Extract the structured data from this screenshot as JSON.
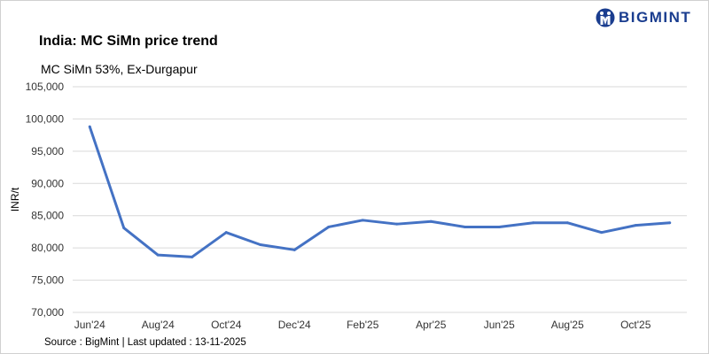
{
  "brand": {
    "name": "BIGMINT",
    "color": "#1a3d8f"
  },
  "source": "Source : BigMint | Last updated : 13-11-2025",
  "chart_data": {
    "type": "line",
    "title": "India: MC SiMn price trend",
    "subtitle": "MC SiMn 53%, Ex-Durgapur",
    "ylabel": "INR/t",
    "xlabel": "",
    "ylim": [
      70000,
      105000
    ],
    "yticks": [
      70000,
      75000,
      80000,
      85000,
      90000,
      95000,
      100000,
      105000
    ],
    "ytick_labels": [
      "70,000",
      "75,000",
      "80,000",
      "85,000",
      "90,000",
      "95,000",
      "100,000",
      "105,000"
    ],
    "grid": true,
    "categories": [
      "Jun'24",
      "Jul'24",
      "Aug'24",
      "Sep'24",
      "Oct'24",
      "Nov'24",
      "Dec'24",
      "Jan'25",
      "Feb'25",
      "Mar'25",
      "Apr'25",
      "May'25",
      "Jun'25",
      "Jul'25",
      "Aug'25",
      "Sep'25",
      "Oct'25",
      "Nov'25"
    ],
    "xtick_labels": [
      "Jun'24",
      "Aug'24",
      "Oct'24",
      "Dec'24",
      "Feb'25",
      "Apr'25",
      "Jun'25",
      "Aug'25",
      "Oct'25"
    ],
    "series": [
      {
        "color": "#4472c4",
        "values": [
          98800,
          83100,
          78900,
          78600,
          82400,
          80500,
          79700,
          83250,
          84300,
          83700,
          84100,
          83250,
          83250,
          83900,
          83900,
          82400,
          83500,
          83900
        ]
      }
    ]
  }
}
